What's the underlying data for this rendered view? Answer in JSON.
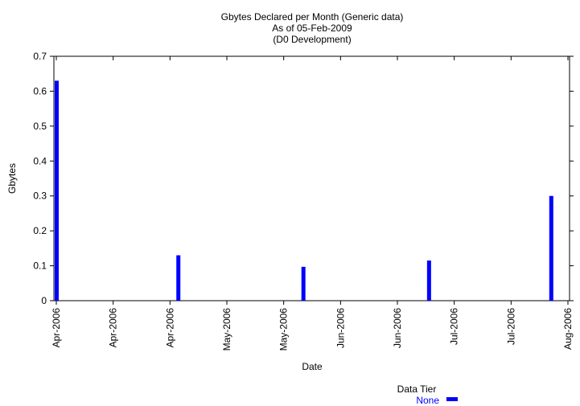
{
  "chart_data": {
    "type": "bar",
    "title_lines": [
      "Gbytes Declared per Month (Generic data)",
      "As of 05-Feb-2009",
      "(D0 Development)"
    ],
    "xlabel": "Date",
    "ylabel": "Gbytes",
    "ylim": [
      0,
      0.7
    ],
    "yticks": [
      "0",
      "0.1",
      "0.2",
      "0.3",
      "0.4",
      "0.5",
      "0.6",
      "0.7"
    ],
    "xticks": [
      "Apr-2006",
      "Apr-2006",
      "Apr-2006",
      "May-2006",
      "May-2006",
      "Jun-2006",
      "Jun-2006",
      "Jul-2006",
      "Jul-2006",
      "Aug-2006"
    ],
    "bars": [
      {
        "x": "Apr-2006",
        "value": 0.63
      },
      {
        "x": "Apr-2006",
        "value": 0.13
      },
      {
        "x": "May-2006",
        "value": 0.097
      },
      {
        "x": "Jun-2006",
        "value": 0.115
      },
      {
        "x": "Jul-2006",
        "value": 0.3
      }
    ],
    "series": [
      {
        "name": "None",
        "color": "#0000ff"
      }
    ],
    "legend": {
      "title": "Data Tier",
      "placement": "bottom-right"
    },
    "grid": false,
    "colors": {
      "bar": "#0000ff",
      "axis": "#000000"
    }
  }
}
